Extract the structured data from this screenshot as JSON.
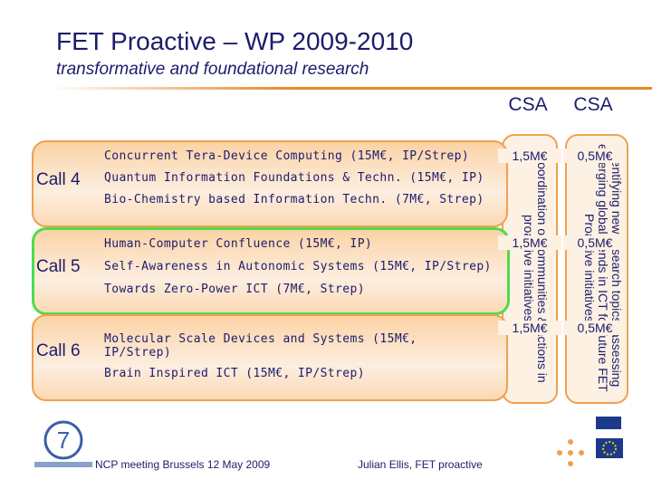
{
  "header": {
    "title": "FET Proactive – WP 2009-2010",
    "subtitle": "transformative and foundational research"
  },
  "columns": [
    "CSA",
    "CSA"
  ],
  "calls": [
    {
      "label": "Call 4",
      "topics": [
        "Concurrent Tera-Device Computing (15M€, IP/Strep)",
        "Quantum Information Foundations & Techn. (15M€, IP)",
        "Bio-Chemistry based Information Techn. (7M€, Strep)"
      ],
      "amounts": [
        "1,5M€",
        "0,5M€"
      ]
    },
    {
      "label": "Call 5",
      "topics": [
        "Human-Computer Confluence (15M€, IP)",
        "Self-Awareness in Autonomic Systems (15M€, IP/Strep)",
        "Towards Zero-Power ICT (7M€, Strep)"
      ],
      "amounts": [
        "1,5M€",
        "0,5M€"
      ]
    },
    {
      "label": "Call 6",
      "topics": [
        "Molecular Scale Devices and Systems (15M€, IP/Strep)",
        "Brain Inspired ICT (15M€, IP/Strep)"
      ],
      "amounts": [
        "1,5M€",
        "0,5M€"
      ]
    }
  ],
  "side_notes": [
    "Coordination of communities & actions in proactive initiatives",
    "Identifying new research topics, assessing emerging global trends in ICT for future FET Proactive initiatives"
  ],
  "footer": {
    "left": "NCP meeting Brussels 12 May 2009",
    "right": "Julian Ellis, FET proactive"
  }
}
